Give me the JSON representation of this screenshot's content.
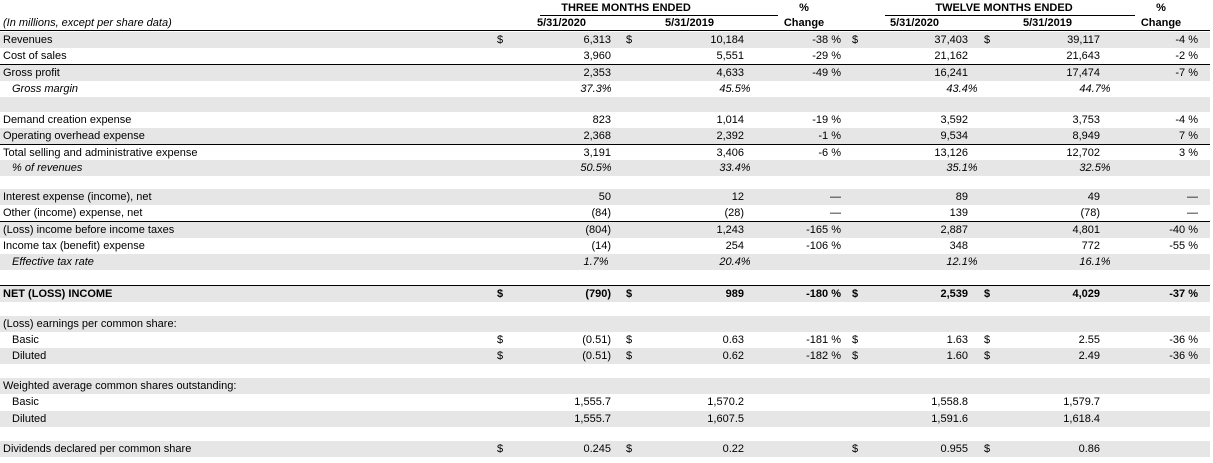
{
  "header": {
    "units_note": "(In millions, except per share data)",
    "group_three": "THREE MONTHS ENDED",
    "group_twelve": "TWELVE MONTHS ENDED",
    "pct_top": "%",
    "pct_bottom": "Change",
    "col_2020": "5/31/2020",
    "col_2019": "5/31/2019"
  },
  "rows": [
    {
      "label": "Revenues",
      "style": "shaded",
      "d1": "$",
      "a": "6,313",
      "d2": "$",
      "b": "10,184",
      "chg1": "-38 %",
      "d3": "$",
      "c": "37,403",
      "d4": "$",
      "d": "39,117",
      "chg2": "-4 %"
    },
    {
      "label": "Cost of sales",
      "style": "",
      "a": "3,960",
      "b": "5,551",
      "chg1": "-29 %",
      "c": "21,162",
      "d": "21,643",
      "chg2": "-2 %"
    },
    {
      "label": "Gross profit",
      "style": "shaded bt",
      "a": "2,353",
      "b": "4,633",
      "chg1": "-49 %",
      "c": "16,241",
      "d": "17,474",
      "chg2": "-7 %"
    },
    {
      "label": "Gross margin",
      "style": "italic indent",
      "a": "37.3%",
      "b": "45.5%",
      "c": "43.4%",
      "d": "44.7%"
    },
    {
      "label": "",
      "style": "shaded",
      "spacer": true
    },
    {
      "label": "Demand creation expense",
      "style": "",
      "a": "823",
      "b": "1,014",
      "chg1": "-19 %",
      "c": "3,592",
      "d": "3,753",
      "chg2": "-4 %"
    },
    {
      "label": "Operating overhead expense",
      "style": "shaded",
      "a": "2,368",
      "b": "2,392",
      "chg1": "-1 %",
      "c": "9,534",
      "d": "8,949",
      "chg2": "7 %"
    },
    {
      "label": "Total selling and administrative expense",
      "style": "bt",
      "a": "3,191",
      "b": "3,406",
      "chg1": "-6 %",
      "c": "13,126",
      "d": "12,702",
      "chg2": "3 %"
    },
    {
      "label": "% of revenues",
      "style": "shaded italic indent",
      "a": "50.5%",
      "b": "33.4%",
      "c": "35.1%",
      "d": "32.5%"
    },
    {
      "label": "",
      "style": "",
      "spacer": true
    },
    {
      "label": "Interest expense (income), net",
      "style": "shaded",
      "a": "50",
      "b": "12",
      "chg1": "—",
      "c": "89",
      "d": "49",
      "chg2": "—"
    },
    {
      "label": "Other (income) expense, net",
      "style": "",
      "a": "(84)",
      "b": "(28)",
      "chg1": "—",
      "c": "139",
      "d": "(78)",
      "chg2": "—"
    },
    {
      "label": "(Loss) income before income taxes",
      "style": "shaded bt",
      "a": "(804)",
      "b": "1,243",
      "chg1": "-165 %",
      "c": "2,887",
      "d": "4,801",
      "chg2": "-40 %"
    },
    {
      "label": "Income tax (benefit) expense",
      "style": "",
      "a": "(14)",
      "b": "254",
      "chg1": "-106 %",
      "c": "348",
      "d": "772",
      "chg2": "-55 %"
    },
    {
      "label": "Effective tax rate",
      "style": "shaded italic indent",
      "a": "1.7%",
      "b": "20.4%",
      "c": "12.1%",
      "d": "16.1%"
    },
    {
      "label": "",
      "style": "",
      "spacer": true
    },
    {
      "label": "NET (LOSS) INCOME",
      "style": "shaded bold bt",
      "d1": "$",
      "a": "(790)",
      "d2": "$",
      "b": "989",
      "chg1": "-180 %",
      "d3": "$",
      "c": "2,539",
      "d4": "$",
      "d": "4,029",
      "chg2": "-37 %"
    },
    {
      "label": "",
      "style": "",
      "spacer": true
    },
    {
      "label": "(Loss) earnings per common share:",
      "style": "shaded",
      "spacer_values": true
    },
    {
      "label": "Basic",
      "style": "indent",
      "d1": "$",
      "a": "(0.51)",
      "d2": "$",
      "b": "0.63",
      "chg1": "-181 %",
      "d3": "$",
      "c": "1.63",
      "d4": "$",
      "d": "2.55",
      "chg2": "-36 %"
    },
    {
      "label": "Diluted",
      "style": "shaded indent",
      "d1": "$",
      "a": "(0.51)",
      "d2": "$",
      "b": "0.62",
      "chg1": "-182 %",
      "d3": "$",
      "c": "1.60",
      "d4": "$",
      "d": "2.49",
      "chg2": "-36 %"
    },
    {
      "label": "",
      "style": "",
      "spacer": true
    },
    {
      "label": "Weighted average common shares outstanding:",
      "style": "shaded",
      "spacer_values": true
    },
    {
      "label": "Basic",
      "style": "indent",
      "a": "1,555.7",
      "b": "1,570.2",
      "c": "1,558.8",
      "d": "1,579.7"
    },
    {
      "label": "Diluted",
      "style": "shaded indent",
      "a": "1,555.7",
      "b": "1,607.5",
      "c": "1,591.6",
      "d": "1,618.4"
    },
    {
      "label": "",
      "style": "",
      "spacer": true
    },
    {
      "label": "Dividends declared per common share",
      "style": "shaded",
      "d1": "$",
      "a": "0.245",
      "d2": "$",
      "b": "0.22",
      "d3": "$",
      "c": "0.955",
      "d4": "$",
      "d": "0.86"
    }
  ]
}
